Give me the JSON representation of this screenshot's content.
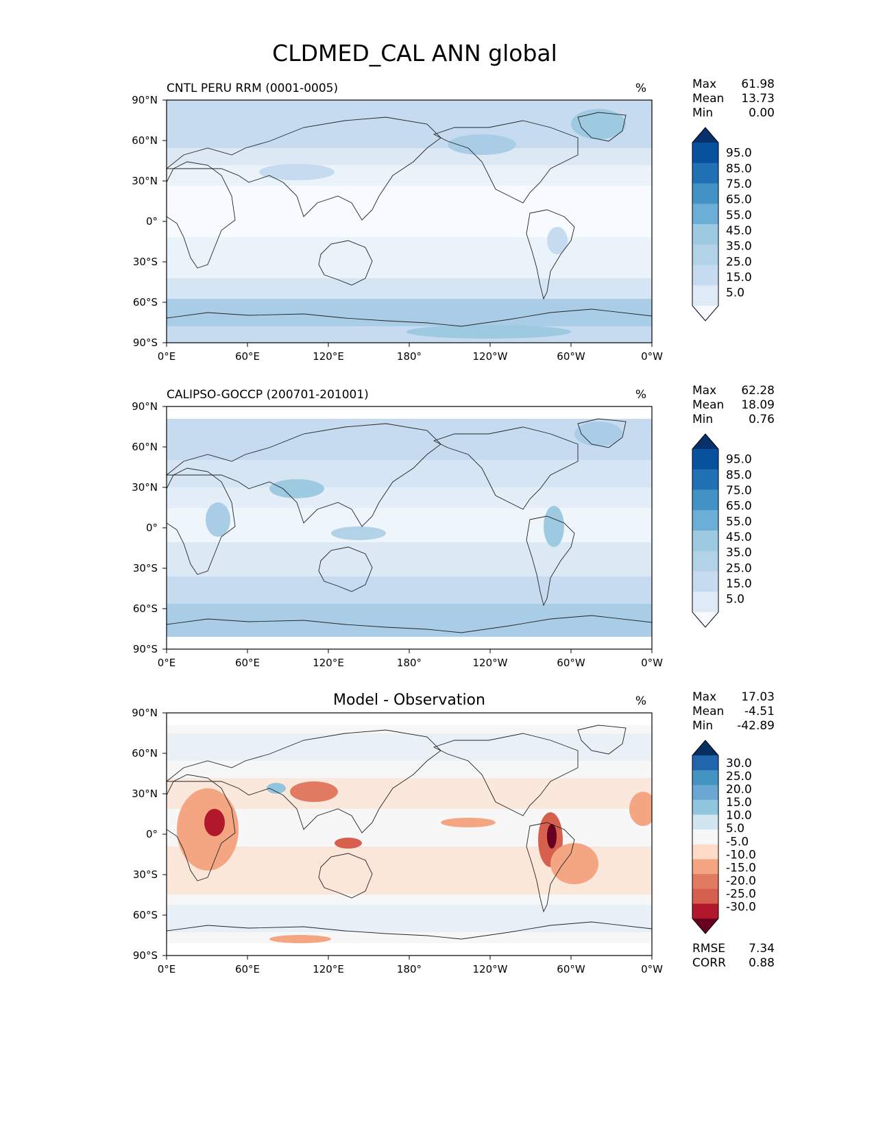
{
  "title": "CLDMED_CAL ANN global",
  "lat_ticks": [
    "90°N",
    "60°N",
    "30°N",
    "0°",
    "30°S",
    "60°S",
    "90°S"
  ],
  "lon_ticks": [
    "0°E",
    "60°E",
    "120°E",
    "180°",
    "120°W",
    "60°W",
    "0°W"
  ],
  "panels": [
    {
      "id": "model",
      "left_title": "CNTL PERU RRM (0001-0005)",
      "center_title": "",
      "units": "%",
      "stats": [
        {
          "label": "Max",
          "value": "61.98"
        },
        {
          "label": "Mean",
          "value": "13.73"
        },
        {
          "label": "Min",
          "value": "0.00"
        }
      ],
      "colorbar": {
        "labels": [
          "95.0",
          "85.0",
          "75.0",
          "65.0",
          "55.0",
          "45.0",
          "35.0",
          "25.0",
          "15.0",
          "5.0"
        ],
        "colors": [
          "#08306b",
          "#08519c",
          "#2171b5",
          "#4292c6",
          "#6baed6",
          "#9ecae1",
          "#b2d2e8",
          "#c6dbef",
          "#deebf7",
          "#f7fbff"
        ]
      }
    },
    {
      "id": "obs",
      "left_title": "CALIPSO-GOCCP (200701-201001)",
      "center_title": "",
      "units": "%",
      "stats": [
        {
          "label": "Max",
          "value": "62.28"
        },
        {
          "label": "Mean",
          "value": "18.09"
        },
        {
          "label": "Min",
          "value": "0.76"
        }
      ],
      "colorbar": {
        "labels": [
          "95.0",
          "85.0",
          "75.0",
          "65.0",
          "55.0",
          "45.0",
          "35.0",
          "25.0",
          "15.0",
          "5.0"
        ],
        "colors": [
          "#08306b",
          "#08519c",
          "#2171b5",
          "#4292c6",
          "#6baed6",
          "#9ecae1",
          "#b2d2e8",
          "#c6dbef",
          "#deebf7",
          "#f7fbff"
        ]
      }
    },
    {
      "id": "diff",
      "left_title": "",
      "center_title": "Model - Observation",
      "units": "%",
      "stats": [
        {
          "label": "Max",
          "value": "17.03"
        },
        {
          "label": "Mean",
          "value": "-4.51"
        },
        {
          "label": "Min",
          "value": "-42.89"
        }
      ],
      "colorbar": {
        "labels": [
          "30.0",
          "25.0",
          "20.0",
          "15.0",
          "10.0",
          "5.0",
          "-5.0",
          "-10.0",
          "-15.0",
          "-20.0",
          "-25.0",
          "-30.0"
        ],
        "colors": [
          "#053061",
          "#2166ac",
          "#4393c3",
          "#6aa7d3",
          "#92c5de",
          "#d1e5f0",
          "#f7f7f7",
          "#fddbc7",
          "#f4a582",
          "#e07b62",
          "#d6604d",
          "#b2182b",
          "#67001f"
        ]
      },
      "metrics": [
        {
          "label": "RMSE",
          "value": "7.34"
        },
        {
          "label": "CORR",
          "value": "0.88"
        }
      ]
    }
  ]
}
